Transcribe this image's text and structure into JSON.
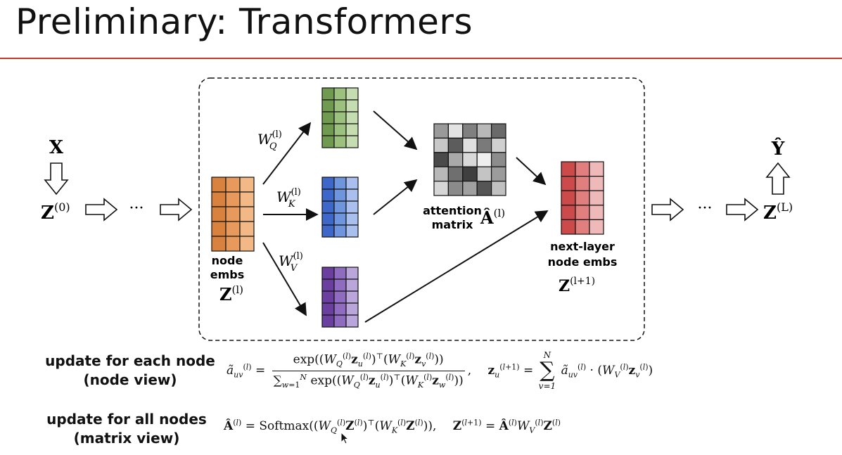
{
  "slide": {
    "title": "Preliminary: Transformers"
  },
  "diagram": {
    "input_label": "X",
    "output_label": "Ŷ",
    "z0_label": "Z",
    "z0_sup": "(0)",
    "zL_label": "Z",
    "zL_sup": "(L)",
    "ellipsis_left": "···",
    "ellipsis_right": "···",
    "node_embs_line1": "node",
    "node_embs_line2": "embs",
    "zl_label": "Z",
    "zl_sup": "(l)",
    "wq_label": "W",
    "wq_sub": "Q",
    "wq_sup": "(l)",
    "wk_label": "W",
    "wk_sub": "K",
    "wk_sup": "(l)",
    "wv_label": "W",
    "wv_sub": "V",
    "wv_sup": "(l)",
    "attention_line1": "attention",
    "attention_line2": "matrix",
    "a_label": "Â",
    "a_sup": "(l)",
    "next_line1": "next-layer",
    "next_line2": "node embs",
    "znext_label": "Z",
    "znext_sup": "(l+1)",
    "colors": {
      "orange": [
        "#d9813f",
        "#e89a5c",
        "#f2b987"
      ],
      "green": [
        "#6f9a4f",
        "#9cc17e",
        "#c5ddb0"
      ],
      "blue": [
        "#3d67c8",
        "#6f95de",
        "#a9c0ee"
      ],
      "purple": [
        "#6a3fa0",
        "#8f6cc0",
        "#bba6dc"
      ],
      "red": [
        "#cc4a4a",
        "#e17f7f",
        "#f0b9b9"
      ],
      "attention_grays": [
        [
          "#9a9a9a",
          "#e3e3e3",
          "#808080",
          "#b8b8b8",
          "#6a6a6a"
        ],
        [
          "#c8c8c8",
          "#5c5c5c",
          "#e0e0e0",
          "#7a7a7a",
          "#d0d0d0"
        ],
        [
          "#4a4a4a",
          "#a9a9a9",
          "#d9d9d9",
          "#eeeeee",
          "#8c8c8c"
        ],
        [
          "#b9b9b9",
          "#6f6f6f",
          "#3f3f3f",
          "#c4c4c4",
          "#9c9c9c"
        ],
        [
          "#d6d6d6",
          "#8a8a8a",
          "#a0a0a0",
          "#555555",
          "#c0c0c0"
        ]
      ]
    }
  },
  "equations": {
    "node_view_label_line1": "update for each node",
    "node_view_label_line2": "(node view)",
    "matrix_view_label_line1": "update for all nodes",
    "matrix_view_label_line2": "(matrix view)"
  }
}
